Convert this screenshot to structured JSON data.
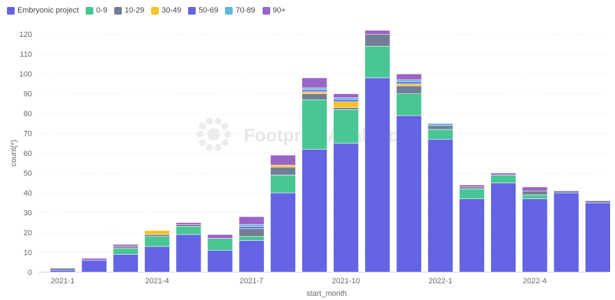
{
  "chart_data": {
    "type": "bar",
    "stacked": true,
    "xlabel": "start_month",
    "ylabel": "count(*)",
    "ylim": [
      0,
      125
    ],
    "yticks": [
      0,
      10,
      20,
      30,
      40,
      50,
      60,
      70,
      80,
      90,
      100,
      110,
      120
    ],
    "grid": true,
    "legend_position": "top-left",
    "watermark": "Footprint Analytics",
    "categories": [
      "2021-1",
      "2021-2",
      "2021-3",
      "2021-4",
      "2021-5",
      "2021-6",
      "2021-7",
      "2021-8",
      "2021-9",
      "2021-10",
      "2021-11",
      "2021-12",
      "2022-1",
      "2022-2",
      "2022-3",
      "2022-4",
      "2022-5",
      "2022-6"
    ],
    "xtick_labels": [
      "2021-1",
      "2021-4",
      "2021-7",
      "2021-10",
      "2022-1",
      "2022-4"
    ],
    "series": [
      {
        "name": "Embryonic project",
        "color": "#6363e3",
        "values": [
          1,
          6,
          9,
          13,
          19,
          11,
          16,
          40,
          62,
          65,
          98,
          79,
          67,
          37,
          45,
          37,
          40,
          35
        ]
      },
      {
        "name": "0-9",
        "color": "#48c694",
        "values": [
          0,
          0,
          3,
          5,
          4,
          6,
          2,
          9,
          25,
          17,
          16,
          11,
          5,
          5,
          4,
          2,
          0,
          0
        ]
      },
      {
        "name": "10-29",
        "color": "#717e95",
        "values": [
          1,
          0,
          1,
          1,
          1,
          0,
          4,
          4,
          3,
          1,
          6,
          4,
          2,
          1,
          0,
          2,
          1,
          1
        ]
      },
      {
        "name": "30-49",
        "color": "#f5c324",
        "values": [
          0,
          0,
          0,
          2,
          0,
          0,
          0,
          1,
          1,
          3,
          0,
          1,
          0,
          0,
          0,
          0,
          0,
          0
        ]
      },
      {
        "name": "50-69",
        "color": "#6363e3",
        "values": [
          0,
          0,
          0,
          0,
          0,
          0,
          1,
          0,
          1,
          1,
          0,
          1,
          0,
          0,
          0,
          0,
          0,
          0
        ]
      },
      {
        "name": "70-89",
        "color": "#5ab8dc",
        "values": [
          0,
          0,
          0,
          0,
          0,
          0,
          1,
          0,
          1,
          1,
          0,
          1,
          1,
          0,
          0,
          0,
          0,
          0
        ]
      },
      {
        "name": "90+",
        "color": "#9a64c5",
        "values": [
          0,
          1,
          1,
          0,
          1,
          2,
          4,
          5,
          5,
          2,
          2,
          3,
          0,
          1,
          1,
          2,
          0,
          0
        ]
      }
    ]
  }
}
